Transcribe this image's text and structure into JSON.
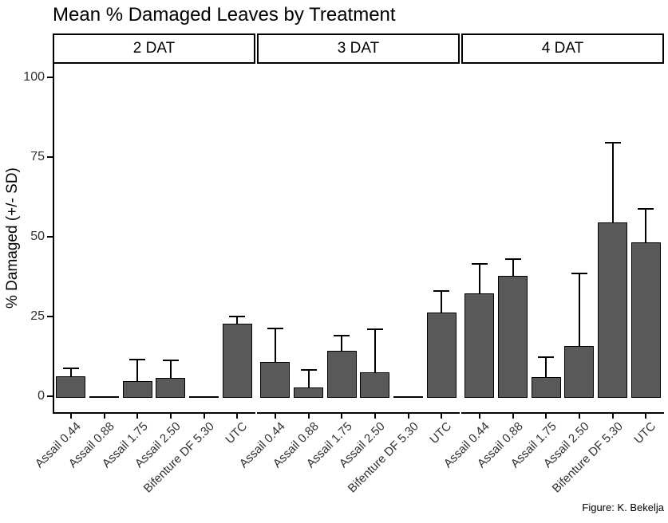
{
  "figure": {
    "title": "Mean % Damaged Leaves by Treatment",
    "caption": "Figure: K. Bekelja"
  },
  "chart_data": {
    "type": "bar",
    "title": "Mean % Damaged Leaves by Treatment",
    "xlabel": "",
    "ylabel": "% Damaged (+/- SD)",
    "ylim": [
      0,
      100
    ],
    "yticks": [
      0,
      25,
      50,
      75,
      100
    ],
    "grid": false,
    "legend": "none",
    "error_bars": "upper standard deviation only",
    "bar_fill": "#595959",
    "bar_border": "#000000",
    "categories": [
      "Assail 0.44",
      "Assail 0.88",
      "Assail 1.75",
      "Assail 2.50",
      "Bifenture DF 5.30",
      "UTC"
    ],
    "facets": [
      {
        "label": "2 DAT",
        "means": [
          6.3,
          0,
          4.8,
          5.8,
          0,
          22.8
        ],
        "sds": [
          2.5,
          0,
          6.7,
          5.5,
          0,
          2.1
        ]
      },
      {
        "label": "3 DAT",
        "means": [
          10.8,
          2.8,
          14.3,
          7.4,
          0,
          26.2
        ],
        "sds": [
          10.4,
          5.5,
          4.8,
          13.5,
          0,
          6.8
        ]
      },
      {
        "label": "4 DAT",
        "means": [
          32.3,
          37.7,
          6.0,
          15.8,
          54.5,
          48.3
        ],
        "sds": [
          9.2,
          5.3,
          6.3,
          22.6,
          25.0,
          10.4
        ]
      }
    ]
  }
}
